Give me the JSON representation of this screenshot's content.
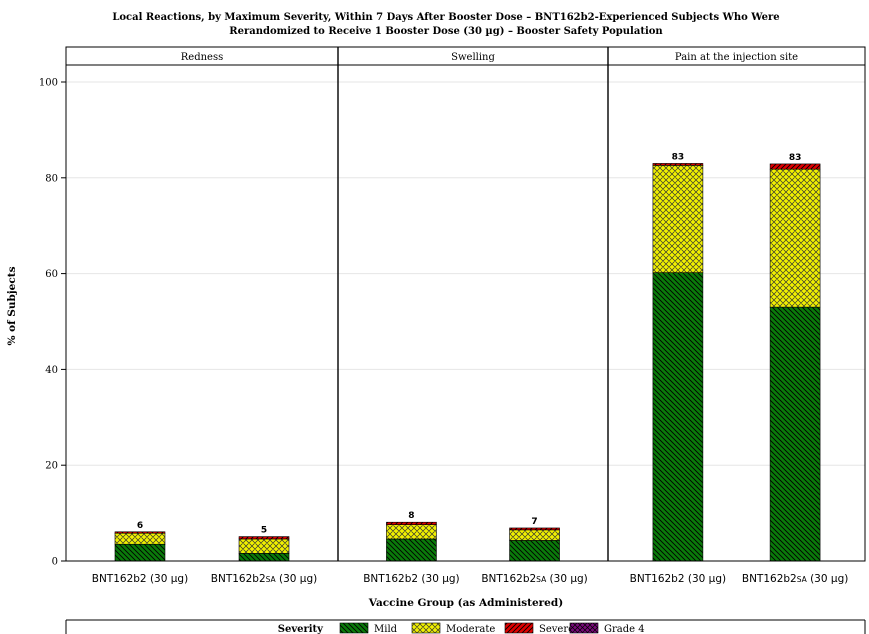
{
  "chart_data": {
    "type": "bar",
    "stacked": true,
    "title_lines": [
      "Local Reactions, by Maximum Severity, Within 7 Days After Booster Dose – BNT162b2-Experienced Subjects Who Were",
      "Rerandomized to Receive 1 Booster Dose (30 µg) – Booster Safety Population"
    ],
    "xlabel": "Vaccine Group (as Administered)",
    "ylabel": "% of Subjects",
    "ylim": [
      0,
      100
    ],
    "yticks": [
      0,
      20,
      40,
      60,
      80,
      100
    ],
    "grid": true,
    "legend": {
      "position": "bottom",
      "title": "Severity",
      "items": [
        "Mild",
        "Moderate",
        "Severe",
        "Grade 4"
      ]
    },
    "colors": {
      "Mild": "#0a7a0a",
      "Moderate": "#f0f000",
      "Severe": "#e00000",
      "Grade 4": "#7a0a7a"
    },
    "panels": [
      {
        "title": "Redness",
        "groups": [
          {
            "label_main": "BNT162b2 (30 µg)",
            "label_sc": "",
            "label_tail": "",
            "total_label": "6",
            "values": {
              "Mild": 3.5,
              "Moderate": 2.3,
              "Severe": 0.3,
              "Grade 4": 0
            }
          },
          {
            "label_main": "BNT162b2",
            "label_sc": "SA",
            "label_tail": " (30 µg)",
            "total_label": "5",
            "values": {
              "Mild": 1.6,
              "Moderate": 3.0,
              "Severe": 0.5,
              "Grade 4": 0
            }
          }
        ]
      },
      {
        "title": "Swelling",
        "groups": [
          {
            "label_main": "BNT162b2 (30 µg)",
            "label_sc": "",
            "label_tail": "",
            "total_label": "8",
            "values": {
              "Mild": 4.6,
              "Moderate": 3.0,
              "Severe": 0.5,
              "Grade 4": 0
            }
          },
          {
            "label_main": "BNT162b2",
            "label_sc": "SA",
            "label_tail": " (30 µg)",
            "total_label": "7",
            "values": {
              "Mild": 4.3,
              "Moderate": 2.2,
              "Severe": 0.4,
              "Grade 4": 0
            }
          }
        ]
      },
      {
        "title": "Pain at the injection site",
        "groups": [
          {
            "label_main": "BNT162b2 (30 µg)",
            "label_sc": "",
            "label_tail": "",
            "total_label": "83",
            "values": {
              "Mild": 60.2,
              "Moderate": 22.4,
              "Severe": 0.4,
              "Grade 4": 0
            }
          },
          {
            "label_main": "BNT162b2",
            "label_sc": "SA",
            "label_tail": " (30 µg)",
            "total_label": "83",
            "values": {
              "Mild": 53.0,
              "Moderate": 28.8,
              "Severe": 1.1,
              "Grade 4": 0
            }
          }
        ]
      }
    ]
  }
}
